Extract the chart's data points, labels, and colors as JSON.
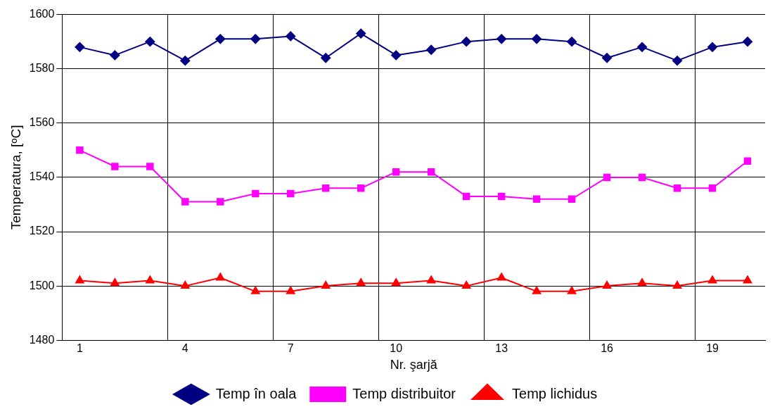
{
  "chart_data": {
    "type": "line",
    "xlabel": "Nr. şarjă",
    "ylabel": "Temperatura, [ᵒC]",
    "categories": [
      "1",
      null,
      null,
      "4",
      null,
      null,
      "7",
      null,
      null,
      "10",
      null,
      null,
      "13",
      null,
      null,
      "16",
      null,
      null,
      "19",
      null
    ],
    "ylim": [
      1480,
      1600
    ],
    "yticks": [
      1480,
      1500,
      1520,
      1540,
      1560,
      1580,
      1600
    ],
    "grid": true,
    "legend": "bottom",
    "line_style": "solid",
    "series": [
      {
        "name": "Temp în oala",
        "color": "#000080",
        "marker": "diamond",
        "values": [
          1588,
          1585,
          1590,
          1583,
          1591,
          1591,
          1592,
          1584,
          1593,
          1585,
          1587,
          1590,
          1591,
          1591,
          1590,
          1584,
          1588,
          1583,
          1588,
          1590
        ]
      },
      {
        "name": "Temp distribuitor",
        "color": "#ff00ff",
        "marker": "square",
        "values": [
          1550,
          1544,
          1544,
          1531,
          1531,
          1534,
          1534,
          1536,
          1536,
          1542,
          1542,
          1533,
          1533,
          1532,
          1532,
          1540,
          1540,
          1536,
          1536,
          1546
        ]
      },
      {
        "name": "Temp lichidus",
        "color": "#ff0000",
        "marker": "triangle",
        "values": [
          1502,
          1501,
          1502,
          1500,
          1503,
          1498,
          1498,
          1500,
          1501,
          1501,
          1502,
          1500,
          1503,
          1498,
          1498,
          1500,
          1501,
          1500,
          1502,
          1502
        ]
      }
    ]
  }
}
